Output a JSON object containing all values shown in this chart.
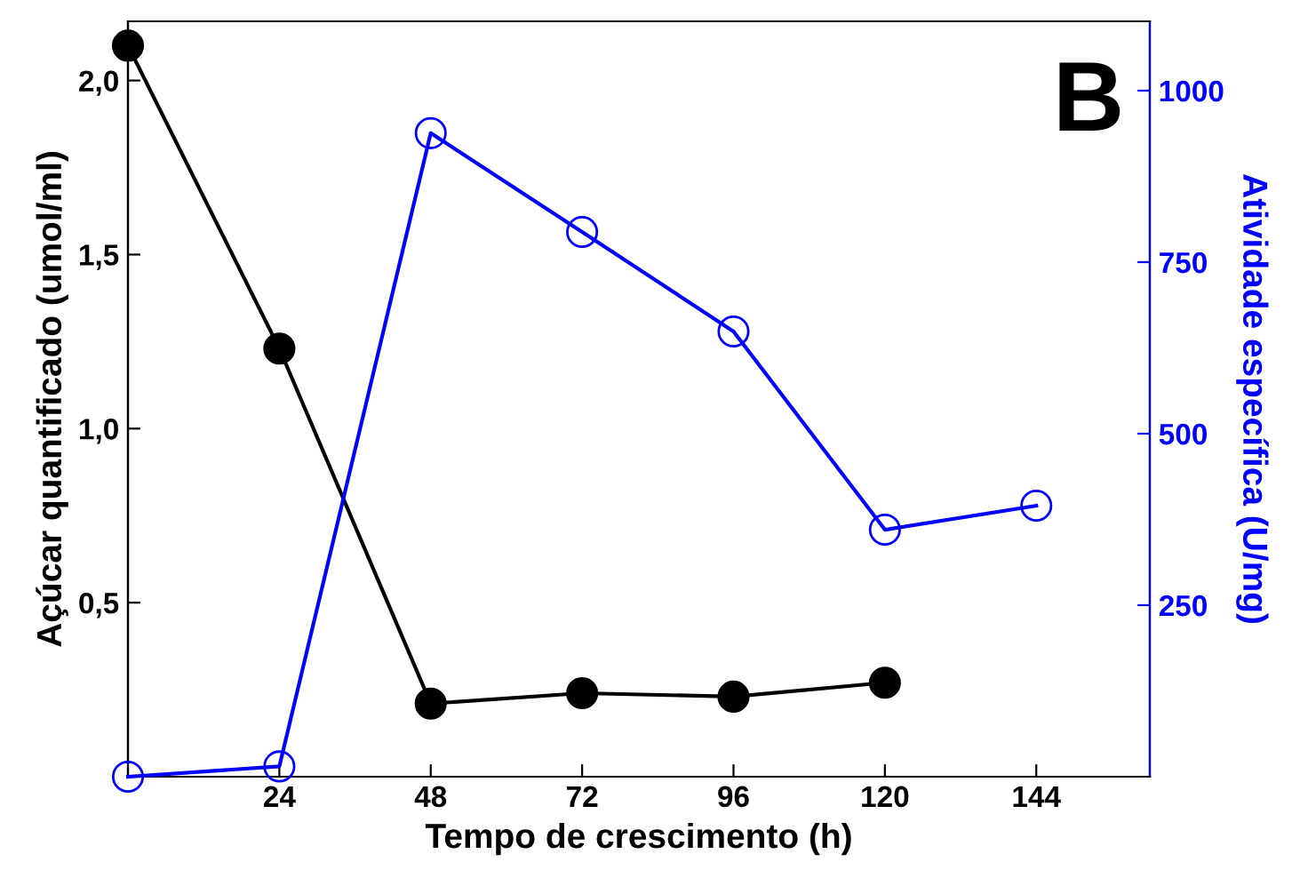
{
  "chart_data": {
    "type": "line",
    "xlabel": "Tempo de crescimento (h)",
    "ylabel": "Açúcar quantificado (umol/ml)",
    "y2label": "Atividade específica (U/mg)",
    "x": [
      0,
      24,
      48,
      72,
      96,
      120,
      144
    ],
    "series": [
      {
        "color": "#000000",
        "values": [
          2.1,
          1.23,
          0.21,
          0.24,
          0.23,
          0.27,
          null
        ],
        "marker": "circle"
      },
      {
        "color": "#0000ff",
        "axis": "y2",
        "values": [
          0,
          15,
          938,
          794,
          649,
          360,
          395
        ],
        "marker": "circle"
      }
    ],
    "xlim": [
      0,
      162
    ],
    "xticks": [
      24,
      48,
      72,
      96,
      120,
      144
    ],
    "ylim": [
      0,
      2.17
    ],
    "yticks": [
      {
        "value": 0.5,
        "label": "0,5"
      },
      {
        "value": 1.0,
        "label": "1,0"
      },
      {
        "value": 1.5,
        "label": "1,5"
      },
      {
        "value": 2.0,
        "label": "2,0"
      }
    ],
    "y2lim": [
      0,
      1101
    ],
    "y2ticks": [
      250,
      500,
      750,
      1000
    ],
    "annotations": [
      {
        "text": "B"
      }
    ],
    "grid": false,
    "legend": false
  }
}
